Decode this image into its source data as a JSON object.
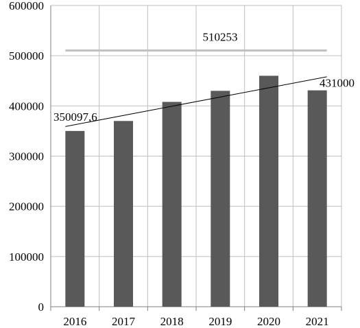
{
  "chart_data": {
    "type": "bar",
    "categories": [
      "2016",
      "2017",
      "2018",
      "2019",
      "2020",
      "2021"
    ],
    "values": [
      350098,
      370000,
      408000,
      430000,
      460000,
      431000
    ],
    "title": "",
    "xlabel": "",
    "ylabel": "",
    "ylim": [
      0,
      600000
    ],
    "yticks": [
      0,
      100000,
      200000,
      300000,
      400000,
      500000,
      600000
    ],
    "ytick_labels": [
      "0",
      "100000",
      "200000",
      "300000",
      "400000",
      "500000",
      "600000"
    ],
    "grid": true,
    "reference_line": {
      "value": 510253,
      "label": "510253"
    },
    "trend_line": {
      "start": 359000,
      "end": 458000
    },
    "annotations": [
      {
        "category": "2016",
        "text": "350097,6"
      },
      {
        "category": "2021",
        "text": "431000"
      }
    ],
    "colors": {
      "bar": "#595959",
      "grid": "#bfbfbf",
      "axis": "#808080",
      "reference_line": "#bfbfbf",
      "trend_line": "#000000"
    }
  }
}
